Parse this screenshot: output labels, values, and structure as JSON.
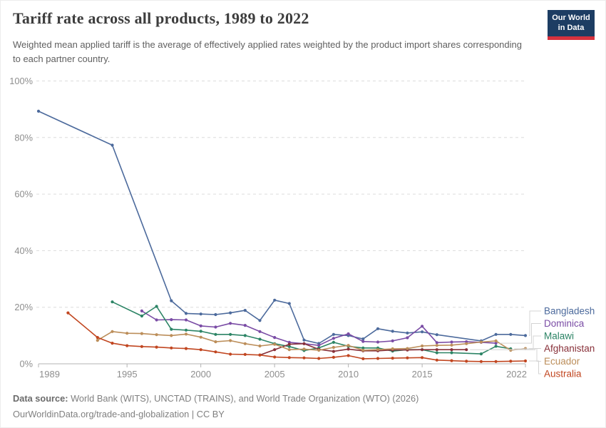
{
  "header": {
    "title": "Tariff rate across all products, 1989 to 2022",
    "subtitle": "Weighted mean applied tariff is the average of effectively applied rates weighted by the product import shares corresponding to each partner country.",
    "logo": {
      "line1": "Our World",
      "line2": "in Data",
      "bg_color": "#1d3d63",
      "accent_color": "#d6323e"
    }
  },
  "footer": {
    "source_label": "Data source:",
    "source_text": " World Bank (WITS), UNCTAD (TRAINS), and World Trade Organization (WTO) (2026)",
    "attribution": "OurWorldinData.org/trade-and-globalization | CC BY"
  },
  "chart_data": {
    "type": "line",
    "title": "Tariff rate across all products, 1989 to 2022",
    "xlabel": "",
    "ylabel": "",
    "xlim": [
      1989,
      2022
    ],
    "ylim": [
      0,
      100
    ],
    "x_ticks": [
      1989,
      1995,
      2000,
      2005,
      2010,
      2015,
      2022
    ],
    "y_ticks": [
      0,
      20,
      40,
      60,
      80,
      100
    ],
    "y_tick_suffix": "%",
    "grid": "horizontal-dashed",
    "legend_position": "right",
    "series": [
      {
        "name": "Bangladesh",
        "color": "#4C6A9C",
        "points": [
          [
            1989,
            89.3
          ],
          [
            1994,
            77.3
          ],
          [
            1998,
            22.3
          ],
          [
            1999,
            17.8
          ],
          [
            2000,
            17.6
          ],
          [
            2001,
            17.4
          ],
          [
            2002,
            18.0
          ],
          [
            2003,
            18.9
          ],
          [
            2004,
            15.3
          ],
          [
            2005,
            22.5
          ],
          [
            2006,
            21.3
          ],
          [
            2007,
            8.4
          ],
          [
            2008,
            7.2
          ],
          [
            2009,
            10.4
          ],
          [
            2010,
            10.0
          ],
          [
            2011,
            8.8
          ],
          [
            2012,
            12.4
          ],
          [
            2013,
            11.5
          ],
          [
            2014,
            10.9
          ],
          [
            2015,
            11.3
          ],
          [
            2016,
            10.3
          ],
          [
            2019,
            8.1
          ],
          [
            2020,
            10.4
          ],
          [
            2021,
            10.4
          ],
          [
            2022,
            10.0
          ]
        ]
      },
      {
        "name": "Dominica",
        "color": "#7A4CA5",
        "points": [
          [
            1996,
            18.7
          ],
          [
            1997,
            15.5
          ],
          [
            1998,
            15.6
          ],
          [
            1999,
            15.5
          ],
          [
            2000,
            13.4
          ],
          [
            2001,
            13.0
          ],
          [
            2002,
            14.3
          ],
          [
            2003,
            13.6
          ],
          [
            2004,
            11.4
          ],
          [
            2005,
            9.3
          ],
          [
            2006,
            7.6
          ],
          [
            2007,
            7.1
          ],
          [
            2008,
            6.5
          ],
          [
            2009,
            9.0
          ],
          [
            2010,
            10.6
          ],
          [
            2011,
            7.9
          ],
          [
            2012,
            7.7
          ],
          [
            2013,
            8.1
          ],
          [
            2014,
            9.2
          ],
          [
            2015,
            13.3
          ],
          [
            2016,
            7.5
          ],
          [
            2017,
            7.7
          ],
          [
            2018,
            7.8
          ],
          [
            2019,
            7.6
          ],
          [
            2020,
            7.3
          ]
        ]
      },
      {
        "name": "Malawi",
        "color": "#2C8465",
        "points": [
          [
            1994,
            21.9
          ],
          [
            1996,
            16.9
          ],
          [
            1997,
            20.3
          ],
          [
            1998,
            12.2
          ],
          [
            1999,
            11.9
          ],
          [
            2000,
            11.5
          ],
          [
            2001,
            10.4
          ],
          [
            2002,
            10.4
          ],
          [
            2003,
            10.0
          ],
          [
            2004,
            8.7
          ],
          [
            2005,
            7.1
          ],
          [
            2006,
            6.1
          ],
          [
            2007,
            4.7
          ],
          [
            2008,
            5.6
          ],
          [
            2009,
            7.6
          ],
          [
            2010,
            6.2
          ],
          [
            2011,
            5.6
          ],
          [
            2012,
            5.6
          ],
          [
            2013,
            4.5
          ],
          [
            2014,
            5.0
          ],
          [
            2015,
            5.0
          ],
          [
            2016,
            3.9
          ],
          [
            2017,
            3.9
          ],
          [
            2019,
            3.5
          ],
          [
            2020,
            6.2
          ],
          [
            2021,
            5.3
          ]
        ]
      },
      {
        "name": "Afghanistan",
        "color": "#883039",
        "points": [
          [
            2004,
            3.1
          ],
          [
            2005,
            5.0
          ],
          [
            2006,
            6.9
          ],
          [
            2007,
            7.1
          ],
          [
            2008,
            5.1
          ],
          [
            2009,
            4.4
          ],
          [
            2010,
            5.2
          ],
          [
            2011,
            4.6
          ],
          [
            2012,
            4.6
          ],
          [
            2013,
            4.9
          ],
          [
            2014,
            4.9
          ],
          [
            2015,
            5.0
          ],
          [
            2016,
            5.0
          ],
          [
            2017,
            5.0
          ],
          [
            2018,
            5.0
          ]
        ]
      },
      {
        "name": "Ecuador",
        "color": "#BC8E5A",
        "points": [
          [
            1993,
            8.3
          ],
          [
            1994,
            11.4
          ],
          [
            1995,
            10.8
          ],
          [
            1996,
            10.7
          ],
          [
            1997,
            10.3
          ],
          [
            1998,
            10.0
          ],
          [
            1999,
            10.5
          ],
          [
            2000,
            9.4
          ],
          [
            2001,
            7.8
          ],
          [
            2002,
            8.2
          ],
          [
            2003,
            7.1
          ],
          [
            2004,
            6.3
          ],
          [
            2005,
            6.9
          ],
          [
            2006,
            5.0
          ],
          [
            2007,
            5.2
          ],
          [
            2008,
            4.8
          ],
          [
            2009,
            5.8
          ],
          [
            2010,
            6.5
          ],
          [
            2011,
            4.8
          ],
          [
            2012,
            5.0
          ],
          [
            2013,
            5.3
          ],
          [
            2014,
            5.4
          ],
          [
            2015,
            6.3
          ],
          [
            2016,
            6.5
          ],
          [
            2017,
            6.6
          ],
          [
            2018,
            7.1
          ],
          [
            2019,
            7.7
          ],
          [
            2020,
            8.1
          ],
          [
            2021,
            4.8
          ],
          [
            2022,
            5.4
          ]
        ]
      },
      {
        "name": "Australia",
        "color": "#C14620",
        "points": [
          [
            1991,
            18.0
          ],
          [
            1993,
            9.3
          ],
          [
            1994,
            7.3
          ],
          [
            1995,
            6.4
          ],
          [
            1996,
            6.1
          ],
          [
            1997,
            5.9
          ],
          [
            1998,
            5.6
          ],
          [
            1999,
            5.4
          ],
          [
            2000,
            5.0
          ],
          [
            2001,
            4.2
          ],
          [
            2002,
            3.4
          ],
          [
            2003,
            3.3
          ],
          [
            2004,
            3.1
          ],
          [
            2005,
            2.4
          ],
          [
            2006,
            2.2
          ],
          [
            2007,
            2.1
          ],
          [
            2008,
            1.9
          ],
          [
            2009,
            2.3
          ],
          [
            2010,
            2.9
          ],
          [
            2011,
            1.8
          ],
          [
            2012,
            1.9
          ],
          [
            2013,
            2.0
          ],
          [
            2014,
            2.1
          ],
          [
            2015,
            2.2
          ],
          [
            2016,
            1.3
          ],
          [
            2017,
            1.1
          ],
          [
            2018,
            0.9
          ],
          [
            2019,
            0.8
          ],
          [
            2020,
            0.8
          ],
          [
            2021,
            0.9
          ],
          [
            2022,
            1.0
          ]
        ]
      }
    ]
  }
}
